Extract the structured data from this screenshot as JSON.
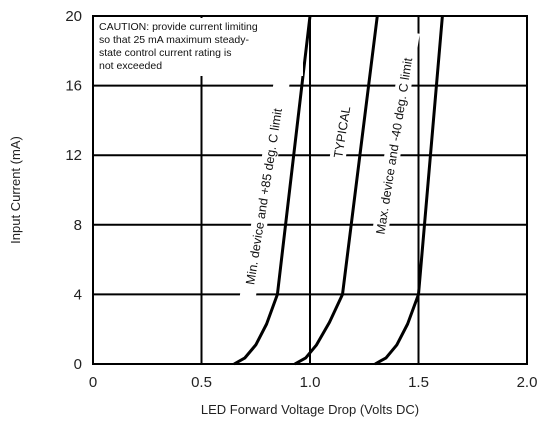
{
  "chart_data": {
    "type": "line",
    "title": "",
    "xlabel": "LED Forward Voltage Drop (Volts DC)",
    "ylabel": "Input Current (mA)",
    "xlim": [
      0,
      2.0
    ],
    "ylim": [
      0,
      20
    ],
    "x_ticks": [
      "0",
      "0.5",
      "1.0",
      "1.5",
      "2.0"
    ],
    "y_ticks": [
      "0",
      "4",
      "8",
      "12",
      "16",
      "20"
    ],
    "grid": true,
    "series": [
      {
        "name": "Min. device and +85 deg. C limit",
        "points": [
          [
            0.65,
            0
          ],
          [
            0.7,
            0.35
          ],
          [
            0.75,
            1.1
          ],
          [
            0.8,
            2.3
          ],
          [
            0.85,
            4
          ],
          [
            1.0,
            20
          ]
        ]
      },
      {
        "name": "TYPICAL",
        "points": [
          [
            0.93,
            0
          ],
          [
            0.98,
            0.35
          ],
          [
            1.03,
            1.1
          ],
          [
            1.09,
            2.4
          ],
          [
            1.15,
            4
          ],
          [
            1.31,
            20
          ]
        ]
      },
      {
        "name": "Max. device and -40 deg. C limit",
        "points": [
          [
            1.3,
            0
          ],
          [
            1.35,
            0.35
          ],
          [
            1.4,
            1.1
          ],
          [
            1.45,
            2.3
          ],
          [
            1.5,
            4
          ],
          [
            1.61,
            20
          ]
        ]
      }
    ],
    "annotations": [
      "CAUTION: provide current limiting",
      "so that 25 mA maximum steady-",
      "state control current rating is",
      "not exceeded"
    ]
  }
}
